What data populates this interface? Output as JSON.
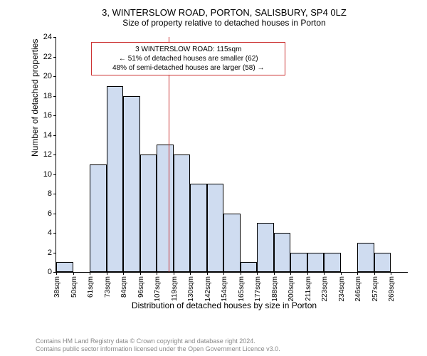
{
  "title": "3, WINTERSLOW ROAD, PORTON, SALISBURY, SP4 0LZ",
  "subtitle": "Size of property relative to detached houses in Porton",
  "y_axis": {
    "label": "Number of detached properties",
    "min": 0,
    "max": 24,
    "ticks": [
      0,
      2,
      4,
      6,
      8,
      10,
      12,
      14,
      16,
      18,
      20,
      22,
      24
    ],
    "fontsize": 11
  },
  "x_axis": {
    "label": "Distribution of detached houses by size in Porton",
    "tick_labels": [
      "38sqm",
      "50sqm",
      "61sqm",
      "73sqm",
      "84sqm",
      "96sqm",
      "107sqm",
      "119sqm",
      "130sqm",
      "142sqm",
      "154sqm",
      "165sqm",
      "177sqm",
      "188sqm",
      "200sqm",
      "211sqm",
      "223sqm",
      "234sqm",
      "246sqm",
      "257sqm",
      "269sqm"
    ],
    "tick_positions": [
      0,
      1,
      2,
      3,
      4,
      5,
      6,
      7,
      8,
      9,
      10,
      11,
      12,
      13,
      14,
      15,
      16,
      17,
      18,
      19,
      20
    ],
    "fontsize": 10
  },
  "chart": {
    "type": "histogram",
    "bar_color": "#cfdcf0",
    "bar_border_color": "#000000",
    "background_color": "#ffffff",
    "n_bars": 21,
    "values": [
      1,
      0,
      11,
      19,
      18,
      12,
      13,
      12,
      9,
      9,
      6,
      1,
      5,
      4,
      2,
      2,
      2,
      0,
      3,
      2,
      0
    ]
  },
  "annotation": {
    "lines": [
      "3 WINTERSLOW ROAD: 115sqm",
      "← 51% of detached houses are smaller (62)",
      "48% of semi-detached houses are larger (58) →"
    ],
    "border_color": "#cc3333",
    "vline_color": "#cc3333",
    "vline_position_bar_index": 6.7,
    "box_left_bar_index": 2.1,
    "box_top_value": 23.5,
    "box_width_bars": 11,
    "text_color": "#000000",
    "fontsize": 10
  },
  "footer": {
    "line1": "Contains HM Land Registry data © Crown copyright and database right 2024.",
    "line2": "Contains public sector information licensed under the Open Government Licence v3.0.",
    "color": "#888888",
    "fontsize": 9
  }
}
